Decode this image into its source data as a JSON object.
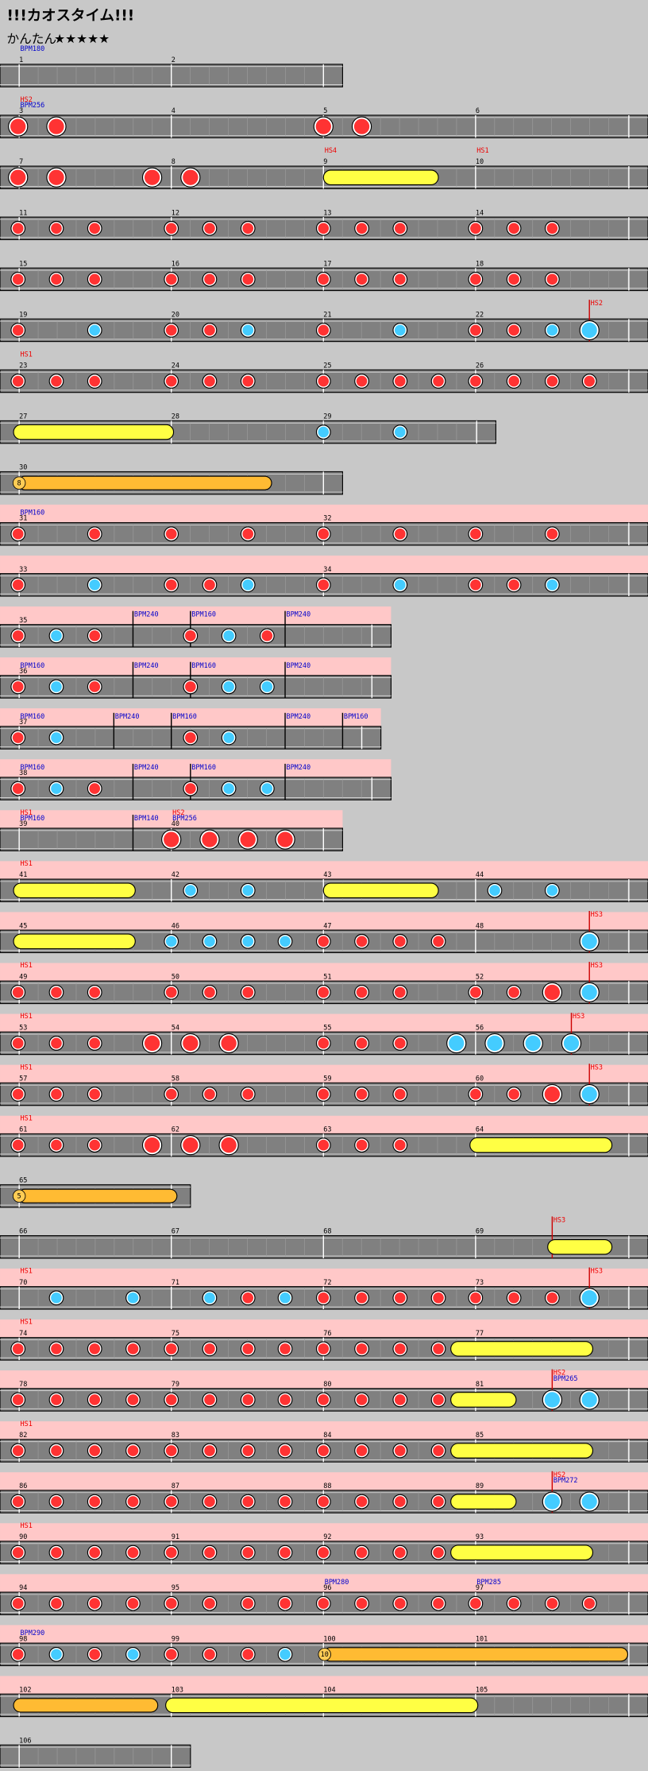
{
  "header": {
    "title": "!!!カオスタイム!!!",
    "difficulty": "かんたん",
    "stars": "★★★★★"
  },
  "rows": [
    {
      "measures": [
        "1",
        "2"
      ],
      "labels": [
        "BPM180"
      ]
    },
    {
      "measures": [
        "3",
        "4",
        "5",
        "6"
      ],
      "labels": [
        "HS2",
        "BPM256"
      ]
    },
    {
      "measures": [
        "7",
        "8",
        "9",
        "10"
      ],
      "labels": [
        "HS4",
        "HS1"
      ]
    },
    {
      "measures": [
        "11",
        "12",
        "13",
        "14"
      ],
      "labels": []
    },
    {
      "measures": [
        "15",
        "16",
        "17",
        "18"
      ],
      "labels": []
    },
    {
      "measures": [
        "19",
        "20",
        "21",
        "22"
      ],
      "labels": [
        "HS2"
      ]
    },
    {
      "measures": [
        "23",
        "24",
        "25",
        "26"
      ],
      "labels": [
        "HS1"
      ]
    },
    {
      "measures": [
        "27",
        "28",
        "29"
      ],
      "labels": []
    },
    {
      "measures": [
        "30"
      ],
      "labels": [],
      "balloon": "8"
    },
    {
      "measures": [
        "31",
        "32"
      ],
      "labels": [
        "BPM160"
      ]
    },
    {
      "measures": [
        "33",
        "34"
      ],
      "labels": []
    },
    {
      "measures": [
        "35"
      ],
      "labels": [
        "BPM240",
        "BPM160",
        "BPM240"
      ]
    },
    {
      "measures": [
        "36"
      ],
      "labels": [
        "BPM160",
        "BPM240",
        "BPM160",
        "BPM240"
      ]
    },
    {
      "measures": [
        "37"
      ],
      "labels": [
        "BPM160",
        "BPM240",
        "BPM160",
        "BPM240",
        "BPM160"
      ]
    },
    {
      "measures": [
        "38"
      ],
      "labels": [
        "BPM160",
        "BPM240",
        "BPM160",
        "BPM240"
      ]
    },
    {
      "measures": [
        "39",
        "40"
      ],
      "labels": [
        "HS1",
        "BPM160",
        "BPM140",
        "HS2",
        "BPM256"
      ]
    },
    {
      "measures": [
        "41",
        "42",
        "43",
        "44"
      ],
      "labels": [
        "HS1"
      ]
    },
    {
      "measures": [
        "45",
        "46",
        "47",
        "48"
      ],
      "labels": [
        "HS3"
      ]
    },
    {
      "measures": [
        "49",
        "50",
        "51",
        "52"
      ],
      "labels": [
        "HS1",
        "HS3"
      ]
    },
    {
      "measures": [
        "53",
        "54",
        "55",
        "56"
      ],
      "labels": [
        "HS1",
        "HS3"
      ]
    },
    {
      "measures": [
        "57",
        "58",
        "59",
        "60"
      ],
      "labels": [
        "HS1",
        "HS3"
      ]
    },
    {
      "measures": [
        "61",
        "62",
        "63",
        "64"
      ],
      "labels": [
        "HS1"
      ]
    },
    {
      "measures": [
        "65"
      ],
      "labels": [],
      "balloon": "5"
    },
    {
      "measures": [
        "66",
        "67",
        "68",
        "69"
      ],
      "labels": [
        "HS3"
      ]
    },
    {
      "measures": [
        "70",
        "71",
        "72",
        "73"
      ],
      "labels": [
        "HS1",
        "HS3"
      ]
    },
    {
      "measures": [
        "74",
        "75",
        "76",
        "77"
      ],
      "labels": [
        "HS1"
      ]
    },
    {
      "measures": [
        "78",
        "79",
        "80",
        "81"
      ],
      "labels": [
        "HS2",
        "BPM265"
      ]
    },
    {
      "measures": [
        "82",
        "83",
        "84",
        "85"
      ],
      "labels": [
        "HS1"
      ]
    },
    {
      "measures": [
        "86",
        "87",
        "88",
        "89"
      ],
      "labels": [
        "HS2",
        "BPM272"
      ]
    },
    {
      "measures": [
        "90",
        "91",
        "92",
        "93"
      ],
      "labels": [
        "HS1"
      ]
    },
    {
      "measures": [
        "94",
        "95",
        "96",
        "97"
      ],
      "labels": [
        "BPM280",
        "BPM285"
      ]
    },
    {
      "measures": [
        "98",
        "99",
        "100",
        "101"
      ],
      "labels": [
        "BPM290"
      ],
      "balloon": "10"
    },
    {
      "measures": [
        "102",
        "103",
        "104",
        "105"
      ],
      "labels": []
    },
    {
      "measures": [
        "106"
      ],
      "labels": []
    }
  ]
}
